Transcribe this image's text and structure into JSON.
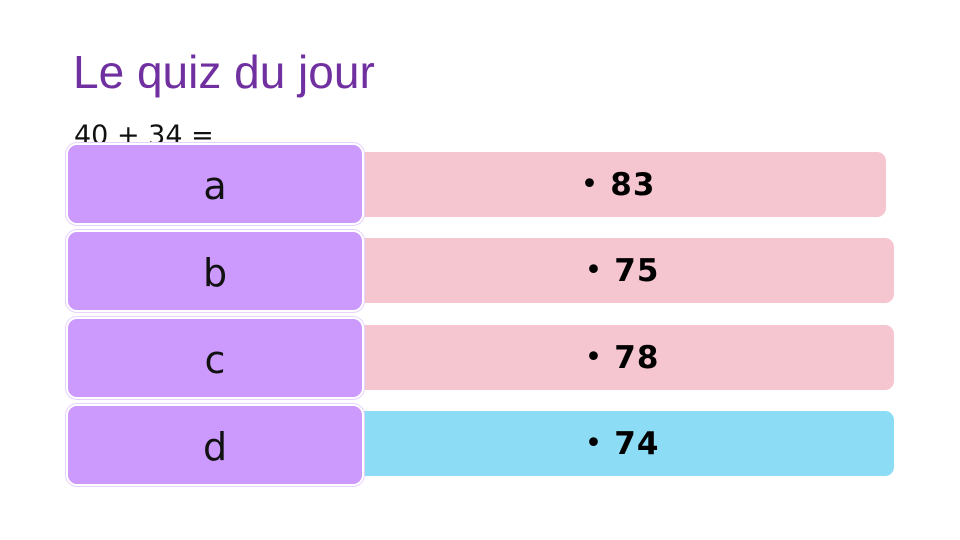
{
  "slide": {
    "title": "Le quiz du jour",
    "question": "40 + 34 ="
  },
  "options": [
    {
      "letter": "a",
      "bullet": "•",
      "value": "83",
      "highlighted": false
    },
    {
      "letter": "b",
      "bullet": "•",
      "value": "75",
      "highlighted": false
    },
    {
      "letter": "c",
      "bullet": "•",
      "value": "78",
      "highlighted": false
    },
    {
      "letter": "d",
      "bullet": "•",
      "value": "74",
      "highlighted": true
    }
  ],
  "colors": {
    "title": "#7030a0",
    "letter_box": "#cc99fc",
    "answer_box": "#f5c6cf",
    "answer_box_highlighted": "#8cdcf5"
  }
}
